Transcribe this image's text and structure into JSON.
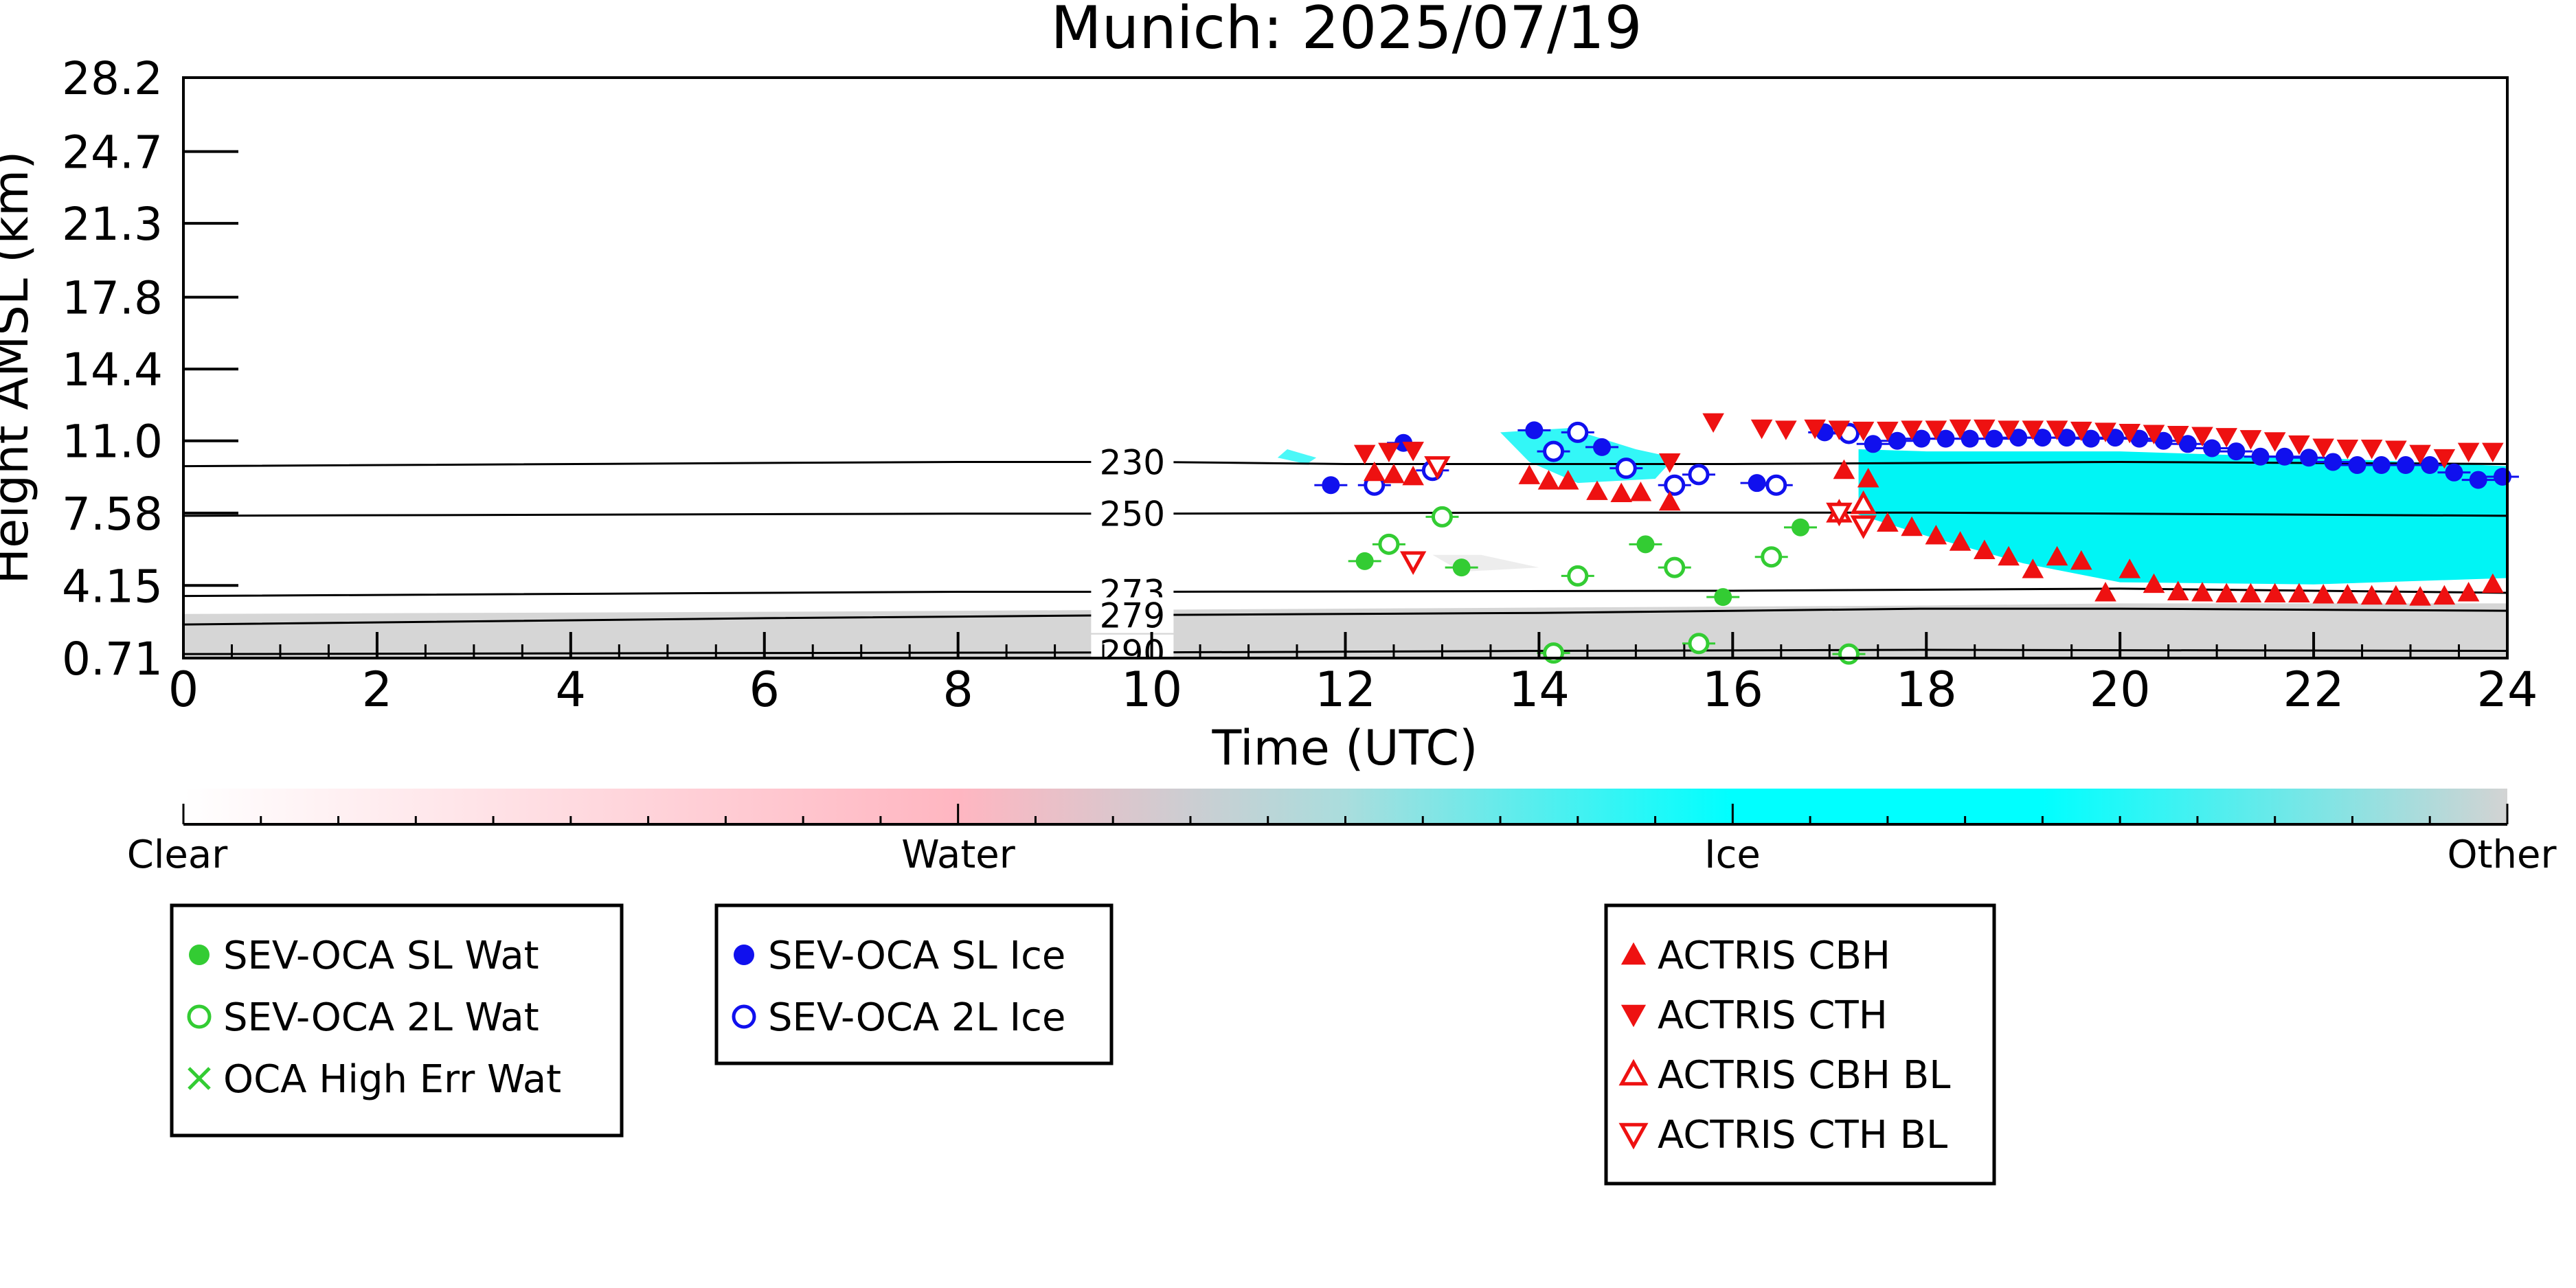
{
  "chart_data": {
    "type": "scatter",
    "title": "Munich: 2025/07/19",
    "xlabel": "Time (UTC)",
    "ylabel": "Height AMSL (km)",
    "xlim": [
      0,
      24
    ],
    "ylim": [
      0.71,
      28.2
    ],
    "x_ticks": [
      0,
      2,
      4,
      6,
      8,
      10,
      12,
      14,
      16,
      18,
      20,
      22,
      24
    ],
    "y_ticks": [
      "0.71",
      "4.15",
      "7.58",
      "11.0",
      "14.4",
      "17.8",
      "21.3",
      "24.7",
      "28.2"
    ],
    "y_tick_values": [
      0.71,
      4.15,
      7.58,
      11.0,
      14.4,
      17.8,
      21.3,
      24.7,
      28.2
    ],
    "grid": false,
    "colorbar": {
      "labels": [
        "Clear",
        "Water",
        "Ice",
        "Other"
      ],
      "colors": [
        "#ffffff",
        "#ffb6c1",
        "#00ffff",
        "#d3d3d3"
      ]
    },
    "contours": [
      {
        "label": "230",
        "label_x": 9.8,
        "points": [
          [
            0,
            9.8
          ],
          [
            8,
            10.0
          ],
          [
            10,
            10.0
          ],
          [
            12,
            9.9
          ],
          [
            16,
            9.9
          ],
          [
            20,
            10.0
          ],
          [
            24,
            9.9
          ]
        ]
      },
      {
        "label": "250",
        "label_x": 9.8,
        "points": [
          [
            0,
            7.45
          ],
          [
            8,
            7.55
          ],
          [
            10,
            7.55
          ],
          [
            14,
            7.6
          ],
          [
            18,
            7.6
          ],
          [
            22,
            7.5
          ],
          [
            24,
            7.45
          ]
        ]
      },
      {
        "label": "273",
        "label_x": 9.8,
        "points": [
          [
            0,
            3.65
          ],
          [
            8,
            3.85
          ],
          [
            10,
            3.85
          ],
          [
            16,
            3.9
          ],
          [
            20,
            4.0
          ],
          [
            24,
            3.8
          ]
        ]
      },
      {
        "label": "279",
        "label_x": 9.8,
        "points": [
          [
            0,
            2.3
          ],
          [
            6,
            2.6
          ],
          [
            10,
            2.75
          ],
          [
            14,
            2.85
          ],
          [
            18,
            3.05
          ],
          [
            20,
            3.05
          ],
          [
            24,
            2.95
          ]
        ]
      },
      {
        "label": "290",
        "label_x": 9.8,
        "points": [
          [
            0,
            0.9
          ],
          [
            6,
            0.95
          ],
          [
            10,
            0.98
          ],
          [
            14,
            1.05
          ],
          [
            18,
            1.1
          ],
          [
            24,
            1.05
          ]
        ]
      }
    ],
    "series": [
      {
        "name": "SEV-OCA SL Wat",
        "marker": "filled-circle",
        "color": "#33cc33",
        "x": [
          12.2,
          13.2,
          15.1,
          15.9,
          16.7
        ],
        "y": [
          5.3,
          5.0,
          6.1,
          3.6,
          6.9
        ]
      },
      {
        "name": "SEV-OCA 2L Wat",
        "marker": "open-circle",
        "color": "#33cc33",
        "x": [
          12.45,
          13.0,
          14.4,
          15.4,
          16.4,
          14.15,
          15.65,
          17.2
        ],
        "y": [
          6.1,
          7.4,
          4.6,
          5.0,
          5.5,
          0.95,
          1.4,
          0.9
        ]
      },
      {
        "name": "OCA High Err Wat",
        "marker": "x",
        "color": "#33cc33",
        "x": [],
        "y": []
      },
      {
        "name": "SEV-OCA SL Ice",
        "marker": "filled-circle",
        "color": "#1010ee",
        "x": [
          11.85,
          12.6,
          13.95,
          14.65,
          16.25,
          16.95,
          17.45,
          17.7,
          17.95,
          18.2,
          18.45,
          18.7,
          18.95,
          19.2,
          19.45,
          19.7,
          19.95,
          20.2,
          20.45,
          20.7,
          20.95,
          21.2,
          21.45,
          21.7,
          21.95,
          22.2,
          22.45,
          22.7,
          22.95,
          23.2,
          23.45,
          23.7,
          23.95
        ],
        "y": [
          8.9,
          10.9,
          11.5,
          10.7,
          9.0,
          11.4,
          10.85,
          11.0,
          11.1,
          11.1,
          11.1,
          11.1,
          11.15,
          11.15,
          11.15,
          11.1,
          11.15,
          11.1,
          11.0,
          10.85,
          10.65,
          10.5,
          10.25,
          10.25,
          10.2,
          10.0,
          9.85,
          9.85,
          9.85,
          9.85,
          9.5,
          9.15,
          9.3
        ]
      },
      {
        "name": "SEV-OCA 2L Ice",
        "marker": "open-circle",
        "color": "#1010ee",
        "x": [
          12.3,
          12.9,
          14.15,
          14.4,
          14.9,
          15.4,
          15.65,
          16.45,
          17.2
        ],
        "y": [
          8.9,
          9.6,
          10.5,
          11.4,
          9.7,
          8.9,
          9.4,
          8.9,
          11.35
        ]
      },
      {
        "name": "ACTRIS CBH",
        "marker": "triangle-up",
        "color": "#ee1111",
        "x": [
          12.3,
          12.5,
          12.7,
          13.9,
          14.1,
          14.3,
          14.6,
          14.85,
          15.05,
          15.35,
          17.15,
          17.4,
          17.6,
          17.85,
          18.1,
          18.35,
          18.6,
          18.85,
          19.1,
          19.35,
          19.6,
          19.85,
          20.1,
          20.35,
          20.6,
          20.85,
          21.1,
          21.35,
          21.6,
          21.85,
          22.1,
          22.35,
          22.6,
          22.85,
          23.1,
          23.35,
          23.6,
          23.85
        ],
        "y": [
          9.5,
          9.4,
          9.3,
          9.35,
          9.1,
          9.1,
          8.6,
          8.5,
          8.55,
          8.1,
          9.6,
          9.2,
          7.1,
          6.9,
          6.5,
          6.2,
          5.8,
          5.5,
          4.9,
          5.5,
          5.3,
          3.8,
          4.9,
          4.2,
          3.85,
          3.8,
          3.75,
          3.75,
          3.75,
          3.75,
          3.7,
          3.7,
          3.65,
          3.65,
          3.6,
          3.65,
          3.8,
          4.2
        ]
      },
      {
        "name": "ACTRIS CTH",
        "marker": "triangle-down",
        "color": "#ee1111",
        "x": [
          12.2,
          12.45,
          12.7,
          15.35,
          15.8,
          16.3,
          16.55,
          16.85,
          17.1,
          17.35,
          17.6,
          17.85,
          18.1,
          18.35,
          18.6,
          18.85,
          19.1,
          19.35,
          19.6,
          19.85,
          20.1,
          20.35,
          20.6,
          20.85,
          21.1,
          21.35,
          21.6,
          21.85,
          22.1,
          22.35,
          22.6,
          22.85,
          23.1,
          23.35,
          23.6,
          23.85
        ],
        "y": [
          10.4,
          10.5,
          10.55,
          10.0,
          11.9,
          11.6,
          11.55,
          11.6,
          11.55,
          11.5,
          11.5,
          11.55,
          11.55,
          11.6,
          11.6,
          11.55,
          11.55,
          11.55,
          11.5,
          11.45,
          11.4,
          11.35,
          11.3,
          11.25,
          11.2,
          11.1,
          11.0,
          10.85,
          10.7,
          10.65,
          10.65,
          10.6,
          10.4,
          10.2,
          10.5,
          10.5
        ]
      },
      {
        "name": "ACTRIS CBH BL",
        "marker": "triangle-up-open",
        "color": "#ee1111",
        "x": [
          17.35,
          17.1
        ],
        "y": [
          8.0,
          7.6
        ]
      },
      {
        "name": "ACTRIS CTH BL",
        "marker": "triangle-down-open",
        "color": "#ee1111",
        "x": [
          12.7,
          12.95,
          17.1,
          17.35
        ],
        "y": [
          5.3,
          9.8,
          7.6,
          7.0
        ]
      }
    ],
    "legend": [
      [
        "SEV-OCA SL Wat",
        "SEV-OCA 2L Wat",
        "OCA High Err Wat"
      ],
      [
        "SEV-OCA SL Ice",
        "SEV-OCA 2L Ice"
      ],
      [
        "ACTRIS CBH",
        "ACTRIS CTH",
        "ACTRIS CBH BL",
        "ACTRIS CTH BL"
      ]
    ]
  }
}
